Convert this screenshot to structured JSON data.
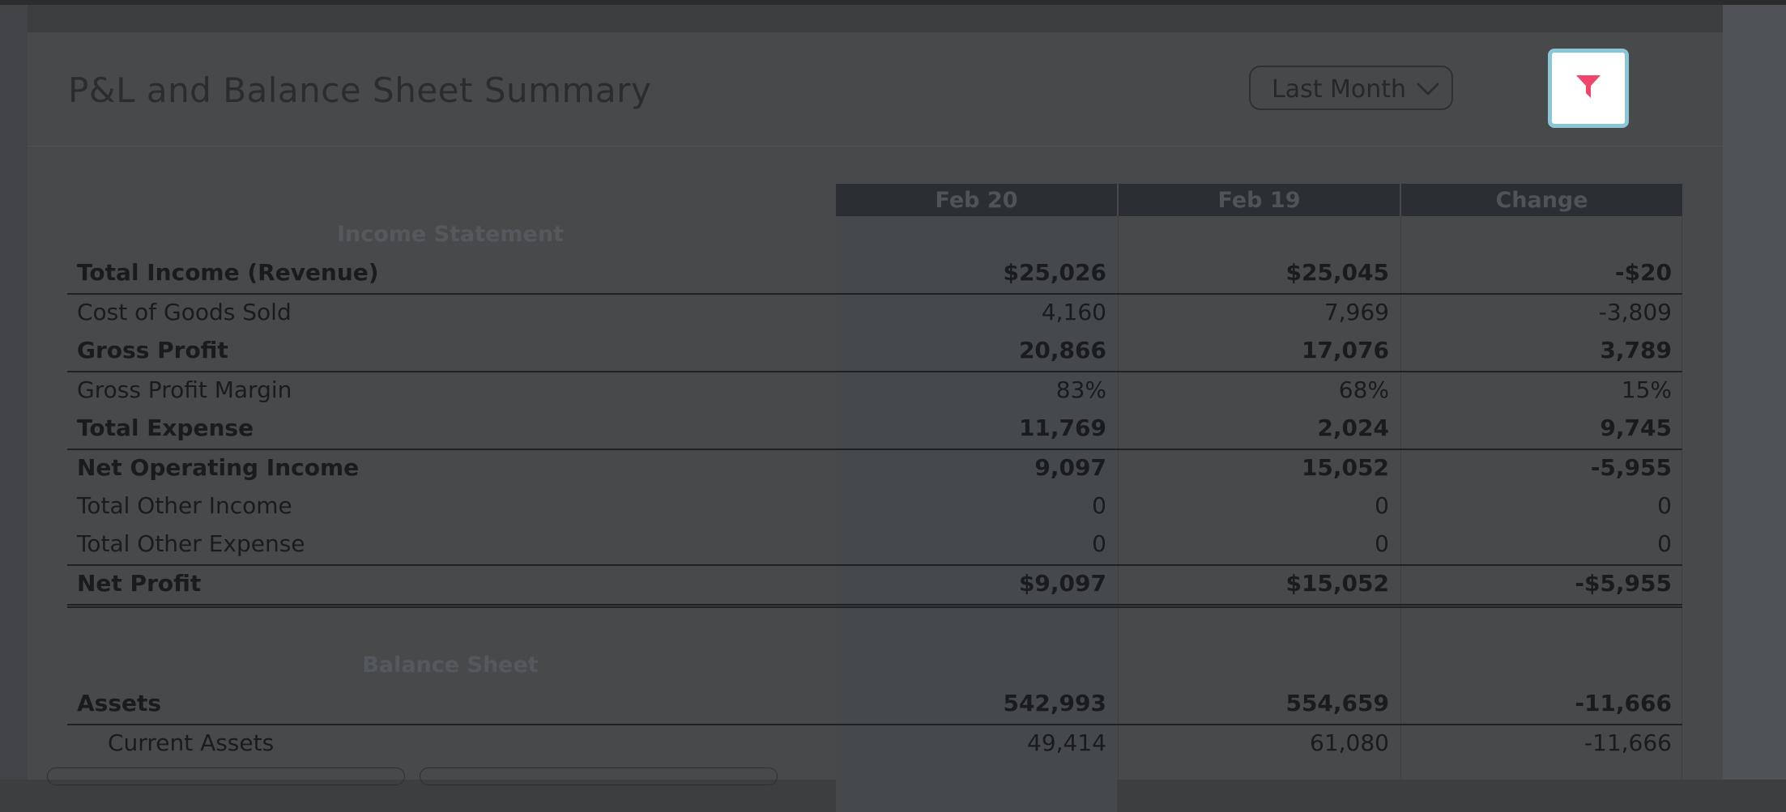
{
  "card": {
    "title": "P&L and Balance Sheet Summary",
    "period_select": {
      "value": "Last Month"
    }
  },
  "table": {
    "columns": [
      "Feb 20",
      "Feb 19",
      "Change"
    ],
    "sections": {
      "income": "Income Statement",
      "balance": "Balance Sheet"
    },
    "rows": [
      {
        "label": "Total Income (Revenue)",
        "values": [
          "$25,026",
          "$25,045",
          "-$20"
        ],
        "bold": true
      },
      {
        "label": "Cost of Goods Sold",
        "values": [
          "4,160",
          "7,969",
          "-3,809"
        ],
        "bold": false
      },
      {
        "label": "Gross Profit",
        "values": [
          "20,866",
          "17,076",
          "3,789"
        ],
        "bold": true
      },
      {
        "label": "Gross Profit Margin",
        "values": [
          "83%",
          "68%",
          "15%"
        ],
        "bold": false
      },
      {
        "label": "Total Expense",
        "values": [
          "11,769",
          "2,024",
          "9,745"
        ],
        "bold": true
      },
      {
        "label": "Net Operating Income",
        "values": [
          "9,097",
          "15,052",
          "-5,955"
        ],
        "bold": true
      },
      {
        "label": "Total Other Income",
        "values": [
          "0",
          "0",
          "0"
        ],
        "bold": false
      },
      {
        "label": "Total Other Expense",
        "values": [
          "0",
          "0",
          "0"
        ],
        "bold": false
      },
      {
        "label": "Net Profit",
        "values": [
          "$9,097",
          "$15,052",
          "-$5,955"
        ],
        "bold": true
      },
      {
        "label": "Assets",
        "values": [
          "542,993",
          "554,659",
          "-11,666"
        ],
        "bold": true
      },
      {
        "label": "Current Assets",
        "values": [
          "49,414",
          "61,080",
          "-11,666"
        ],
        "bold": false
      }
    ]
  },
  "colors": {
    "filter_icon": "#f0466b",
    "filter_border": "#8ac6d6",
    "header_bg": "#2b2f33"
  },
  "icons": {
    "filter": "filter-icon",
    "dropdown": "chevron-down-icon"
  }
}
